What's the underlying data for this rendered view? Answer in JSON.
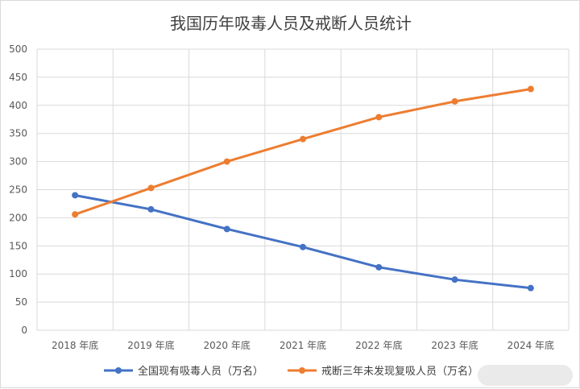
{
  "chart_data": {
    "type": "line",
    "title": "我国历年吸毒人员及戒断人员统计",
    "xlabel": "",
    "ylabel": "",
    "categories": [
      "2018 年底",
      "2019 年底",
      "2020 年底",
      "2021 年底",
      "2022 年底",
      "2023 年底",
      "2024 年底"
    ],
    "ylim": [
      0,
      500
    ],
    "yticks": [
      0,
      50,
      100,
      150,
      200,
      250,
      300,
      350,
      400,
      450,
      500
    ],
    "grid": true,
    "legend": "bottom",
    "series": [
      {
        "name": "全国现有吸毒人员（万名）",
        "color": "#4472c4",
        "values": [
          240,
          215,
          180,
          148,
          112,
          90,
          75
        ]
      },
      {
        "name": "戒断三年未发现复吸人员（万名）",
        "color": "#ed7d31",
        "values": [
          206,
          253,
          300,
          340,
          379,
          407,
          429
        ]
      }
    ]
  }
}
